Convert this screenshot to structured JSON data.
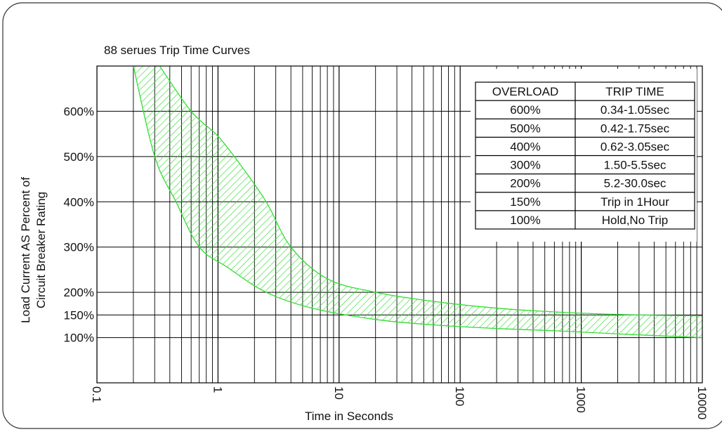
{
  "chart_data": {
    "type": "area",
    "title": "88 serues Trip Time Curves",
    "xlabel": "Time in Seconds",
    "ylabel_lines": [
      "Load Current AS Percent of",
      "Circuit Breaker Rating"
    ],
    "x_scale": "log",
    "xlim": [
      0.1,
      10000
    ],
    "ylim": [
      0,
      700
    ],
    "x_ticks": [
      "0.1",
      "1",
      "10",
      "100",
      "1000",
      "10000"
    ],
    "x_tick_values": [
      0.1,
      1,
      10,
      100,
      1000,
      10000
    ],
    "y_ticks": [
      {
        "value": 100,
        "label": "100%"
      },
      {
        "value": 150,
        "label": "150%"
      },
      {
        "value": 200,
        "label": "200%"
      },
      {
        "value": 300,
        "label": "300%"
      },
      {
        "value": 400,
        "label": "400%"
      },
      {
        "value": 500,
        "label": "500%"
      },
      {
        "value": 600,
        "label": "600%"
      }
    ],
    "grid": true,
    "band_color": "#33dd33",
    "lower_curve": [
      [
        0.2,
        700
      ],
      [
        0.3,
        500
      ],
      [
        0.45,
        400
      ],
      [
        0.7,
        300
      ],
      [
        1.2,
        255
      ],
      [
        2.5,
        200
      ],
      [
        6,
        165
      ],
      [
        20,
        140
      ],
      [
        60,
        128
      ],
      [
        200,
        120
      ],
      [
        600,
        115
      ],
      [
        2000,
        108
      ],
      [
        10000,
        100
      ]
    ],
    "upper_curve": [
      [
        0.33,
        700
      ],
      [
        0.6,
        600
      ],
      [
        1,
        545
      ],
      [
        1.5,
        485
      ],
      [
        2.5,
        400
      ],
      [
        4,
        300
      ],
      [
        8,
        230
      ],
      [
        20,
        200
      ],
      [
        60,
        180
      ],
      [
        200,
        165
      ],
      [
        800,
        155
      ],
      [
        3000,
        150
      ],
      [
        10000,
        148
      ]
    ],
    "table": {
      "headers": [
        "OVERLOAD",
        "TRIP TIME"
      ],
      "rows": [
        [
          "600%",
          "0.34-1.05sec"
        ],
        [
          "500%",
          "0.42-1.75sec"
        ],
        [
          "400%",
          "0.62-3.05sec"
        ],
        [
          "300%",
          "1.50-5.5sec"
        ],
        [
          "200%",
          "5.2-30.0sec"
        ],
        [
          "150%",
          "Trip in 1Hour"
        ],
        [
          "100%",
          "Hold,No Trip"
        ]
      ]
    }
  }
}
